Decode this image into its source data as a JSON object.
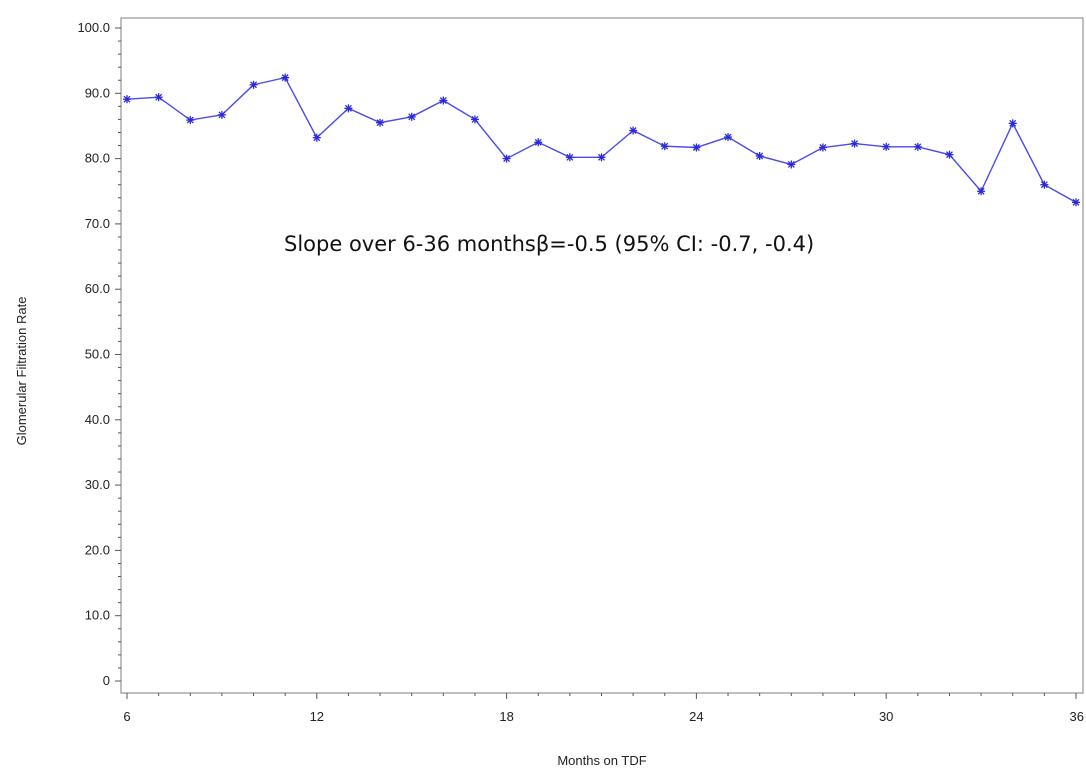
{
  "chart_data": {
    "type": "line",
    "xlabel": "Months on TDF",
    "ylabel": "Glomerular Filtration Rate",
    "annotation": "Slope over 6-36 monthsβ=-0.5 (95% CI: -0.7, -0.4)",
    "xlim": [
      6,
      36
    ],
    "ylim": [
      0,
      100
    ],
    "x_ticks": [
      6,
      12,
      18,
      24,
      30,
      36
    ],
    "x_tick_labels": [
      "6",
      "12",
      "18",
      "24",
      "30",
      "36"
    ],
    "y_ticks": [
      0,
      10,
      20,
      30,
      40,
      50,
      60,
      70,
      80,
      90,
      100
    ],
    "y_tick_labels": [
      "0",
      "10.0",
      "20.0",
      "30.0",
      "40.0",
      "50.0",
      "60.0",
      "70.0",
      "80.0",
      "90.0",
      "100.0"
    ],
    "grid": false,
    "series": [
      {
        "color": "#4a4af0",
        "marker": "asterisk",
        "x": [
          6,
          7,
          8,
          9,
          10,
          11,
          12,
          13,
          14,
          15,
          16,
          17,
          18,
          19,
          20,
          21,
          22,
          23,
          24,
          25,
          26,
          27,
          28,
          29,
          30,
          31,
          32,
          33,
          34,
          35,
          36
        ],
        "y": [
          89.1,
          89.4,
          85.9,
          86.7,
          91.3,
          92.4,
          83.2,
          87.7,
          85.5,
          86.4,
          88.9,
          86.0,
          80.0,
          82.5,
          80.2,
          80.2,
          84.3,
          81.9,
          81.7,
          83.3,
          80.4,
          79.1,
          81.7,
          82.3,
          81.8,
          81.8,
          80.6,
          75.0,
          85.4,
          76.0,
          73.3
        ]
      }
    ]
  }
}
